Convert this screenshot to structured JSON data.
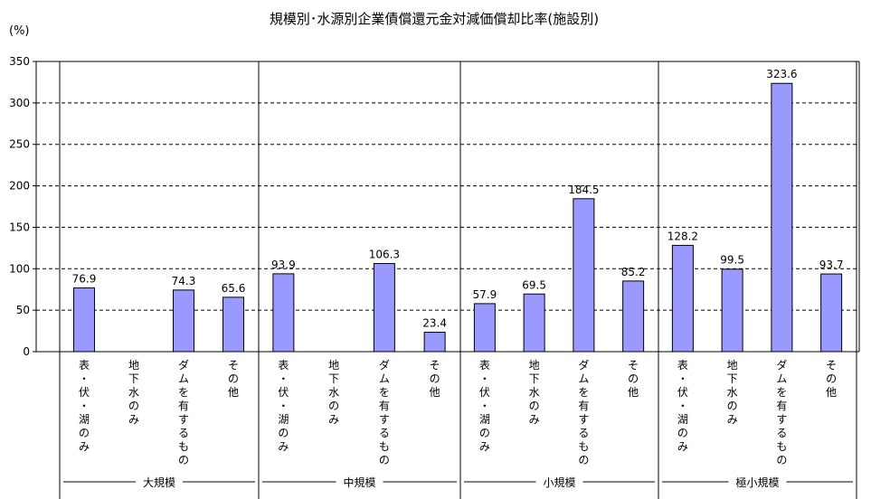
{
  "chart_data": {
    "type": "bar",
    "title": "規模別･水源別企業債償還元金対減価償却比率(施設別)",
    "ylabel": "(%)",
    "ylim": [
      0,
      350
    ],
    "yticks": [
      0,
      50,
      100,
      150,
      200,
      250,
      300,
      350
    ],
    "grid": true,
    "categories": [
      "表・伏・湖のみ",
      "地下水のみ",
      "ダムを有するもの",
      "その他"
    ],
    "groups": [
      {
        "name": "大規模",
        "values": [
          76.9,
          null,
          74.3,
          65.6
        ]
      },
      {
        "name": "中規模",
        "values": [
          93.9,
          null,
          106.3,
          23.4
        ]
      },
      {
        "name": "小規模",
        "values": [
          57.9,
          69.5,
          184.5,
          85.2
        ]
      },
      {
        "name": "極小規模",
        "values": [
          128.2,
          99.5,
          323.6,
          93.7
        ]
      }
    ],
    "data_labels": [
      [
        "76.9",
        "",
        "74.3",
        "65.6"
      ],
      [
        "93.9",
        "",
        "106.3",
        "23.4"
      ],
      [
        "57.9",
        "69.5",
        "184.5",
        "85.2"
      ],
      [
        "128.2",
        "99.5",
        "323.6",
        "93.7"
      ]
    ],
    "bar_color": "#9999ff",
    "bar_border": "#000000"
  }
}
